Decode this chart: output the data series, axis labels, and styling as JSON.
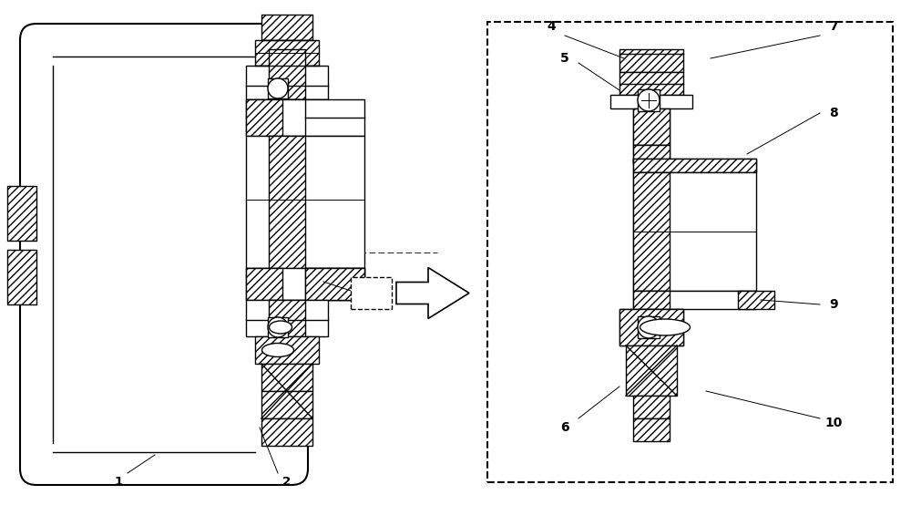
{
  "bg_color": "#ffffff",
  "line_color": "#000000",
  "fig_width": 10.0,
  "fig_height": 5.54,
  "dpi": 100,
  "lw": 1.0,
  "lw_thick": 1.5,
  "hatch": "////"
}
